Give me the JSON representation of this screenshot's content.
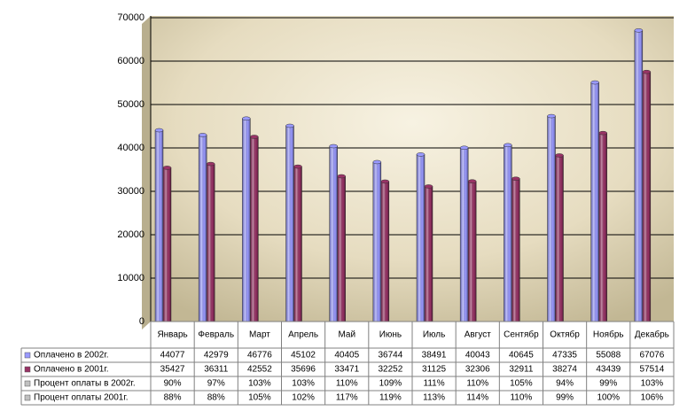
{
  "chart_data": {
    "type": "bar",
    "categories": [
      "Январь",
      "Февраль",
      "Март",
      "Апрель",
      "Май",
      "Июнь",
      "Июль",
      "Август",
      "Сентябр",
      "Октябр",
      "Ноябрь",
      "Декабрь"
    ],
    "series": [
      {
        "name": "Оплачено в 2002г.",
        "color": "#9999ff",
        "values": [
          44077,
          42979,
          46776,
          45102,
          40405,
          36744,
          38491,
          40043,
          40645,
          47335,
          55088,
          67076
        ]
      },
      {
        "name": "Оплачено в 2001г.",
        "color": "#993366",
        "values": [
          35427,
          36311,
          42552,
          35696,
          33471,
          32252,
          31125,
          32306,
          32911,
          38274,
          43439,
          57514
        ]
      }
    ],
    "table_rows": [
      {
        "name": "Процент оплаты в 2002г.",
        "color": "#c0c0c0",
        "values": [
          90,
          97,
          103,
          103,
          110,
          109,
          111,
          110,
          105,
          94,
          99,
          103
        ],
        "value_labels": [
          "90%",
          "97%",
          "103%",
          "103%",
          "110%",
          "109%",
          "111%",
          "110%",
          "105%",
          "94%",
          "99%",
          "103%"
        ]
      },
      {
        "name": "Процент оплаты  2001г.",
        "color": "#c0c0c0",
        "values": [
          88,
          88,
          105,
          102,
          117,
          119,
          113,
          114,
          110,
          99,
          100,
          106
        ],
        "value_labels": [
          "88%",
          "88%",
          "105%",
          "102%",
          "117%",
          "119%",
          "113%",
          "114%",
          "110%",
          "99%",
          "100%",
          "106%"
        ]
      }
    ],
    "ylim": [
      0,
      70000
    ],
    "yticks": [
      0,
      10000,
      20000,
      30000,
      40000,
      50000,
      60000,
      70000
    ],
    "grid": true
  }
}
